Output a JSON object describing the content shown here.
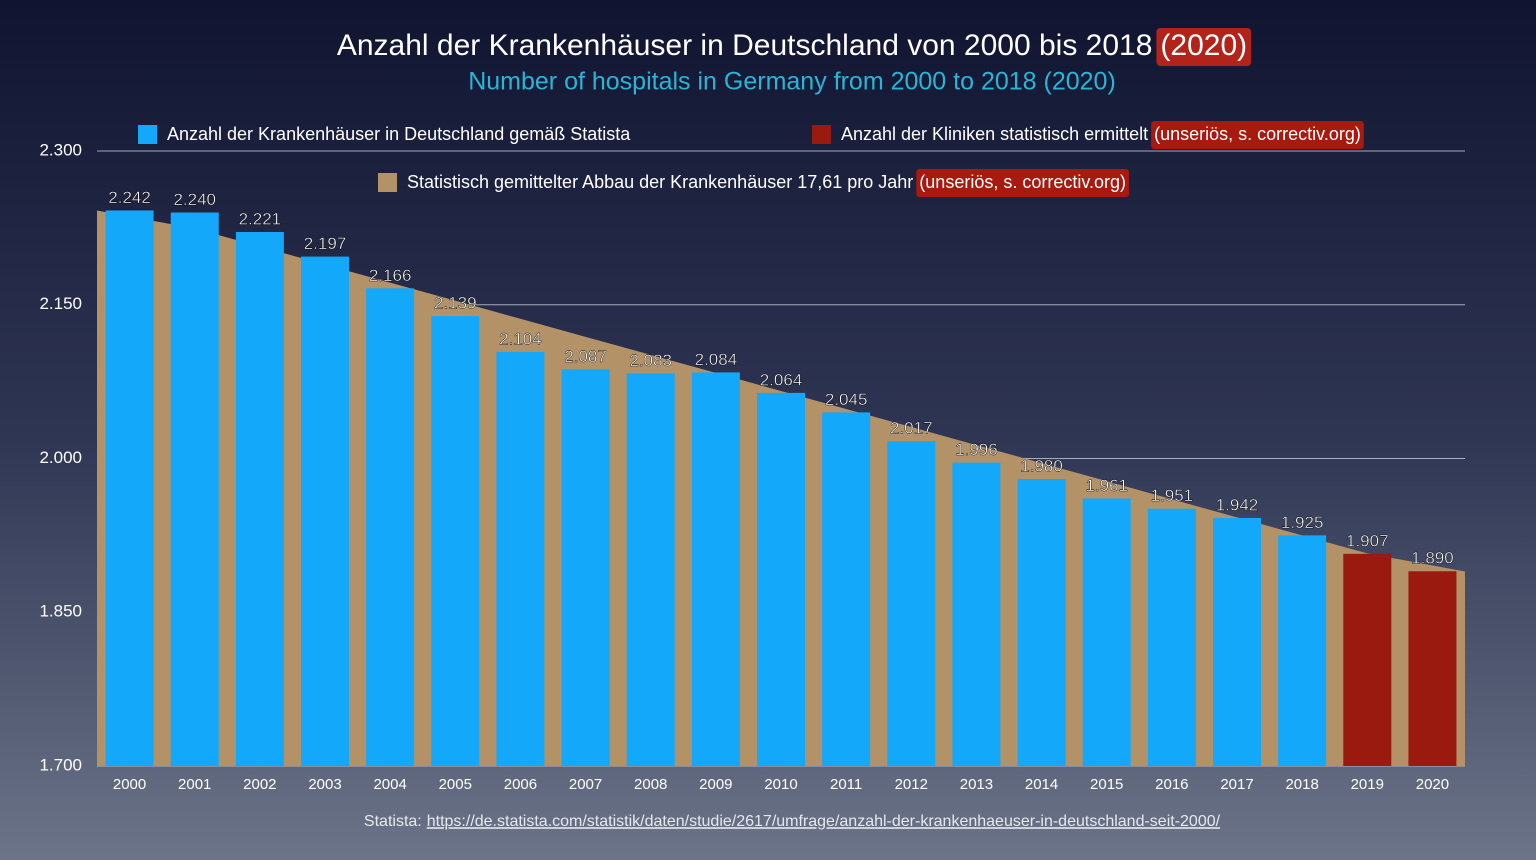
{
  "chart_data": {
    "type": "bar",
    "title": "Anzahl der Krankenhäuser in Deutschland von 2000 bis 2018",
    "title_note": "(2020)",
    "subtitle": "Number of hospitals in Germany from 2000 to 2018 (2020)",
    "categories": [
      "2000",
      "2001",
      "2002",
      "2003",
      "2004",
      "2005",
      "2006",
      "2007",
      "2008",
      "2009",
      "2010",
      "2011",
      "2012",
      "2013",
      "2014",
      "2015",
      "2016",
      "2017",
      "2018",
      "2019",
      "2020"
    ],
    "series": [
      {
        "name": "Statistisch gemittelter Abbau der Krankenhäuser 17,61 pro Jahr",
        "note": "(unseriös, s. correctiv.org)",
        "type": "area",
        "color": "#b39267",
        "values": [
          2242,
          2224.4,
          2206.8,
          2189.2,
          2171.6,
          2154.0,
          2136.3,
          2118.7,
          2101.1,
          2083.5,
          2065.9,
          2048.3,
          2030.7,
          2013.1,
          1995.5,
          1977.9,
          1960.2,
          1942.6,
          1925.0,
          1907.4,
          1889.8
        ]
      },
      {
        "name": "Anzahl der Krankenhäuser in Deutschland gemäß Statista",
        "color": "#14a8fb",
        "values": [
          2242,
          2240,
          2221,
          2197,
          2166,
          2139,
          2104,
          2087,
          2083,
          2084,
          2064,
          2045,
          2017,
          1996,
          1980,
          1961,
          1951,
          1942,
          1925,
          null,
          null
        ],
        "value_labels": [
          "2.242",
          "2.240",
          "2.221",
          "2.197",
          "2.166",
          "2.139",
          "2.104",
          "2.087",
          "2.083",
          "2.084",
          "2.064",
          "2.045",
          "2.017",
          "1.996",
          "1.980",
          "1.961",
          "1.951",
          "1.942",
          "1.925",
          null,
          null
        ]
      },
      {
        "name": "Anzahl der Kliniken statistisch ermittelt",
        "note": "(unseriös, s. correctiv.org)",
        "color": "#9a1a10",
        "values": [
          null,
          null,
          null,
          null,
          null,
          null,
          null,
          null,
          null,
          null,
          null,
          null,
          null,
          null,
          null,
          null,
          null,
          null,
          null,
          1907,
          1890
        ],
        "value_labels": [
          null,
          null,
          null,
          null,
          null,
          null,
          null,
          null,
          null,
          null,
          null,
          null,
          null,
          null,
          null,
          null,
          null,
          null,
          null,
          "1.907",
          "1.890"
        ]
      }
    ],
    "ylim": [
      1700,
      2300
    ],
    "yticks": [
      {
        "value": 1700,
        "label": "1.700"
      },
      {
        "value": 1850,
        "label": "1.850"
      },
      {
        "value": 2000,
        "label": "2.000"
      },
      {
        "value": 2150,
        "label": "2.150"
      },
      {
        "value": 2300,
        "label": "2.300"
      }
    ],
    "grid": true,
    "source_label": "Statista:",
    "source_url": "https://de.statista.com/statistik/daten/studie/2617/umfrage/anzahl-der-krankenhaeuser-in-deutschland-seit-2000/"
  }
}
